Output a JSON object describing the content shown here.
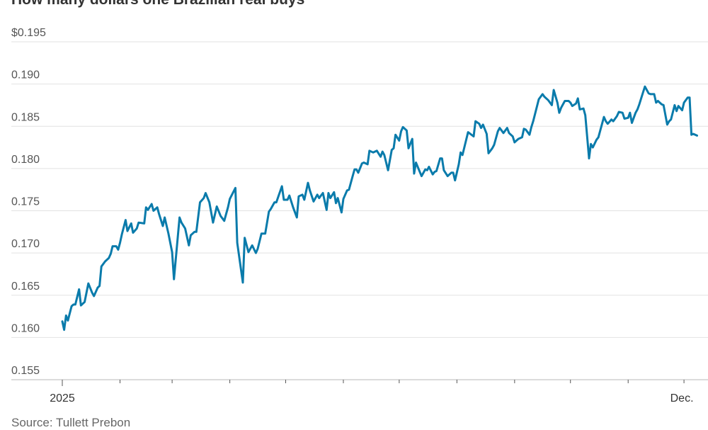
{
  "chart_data": {
    "type": "line",
    "title": "How many dollars one Brazilian real buys",
    "source": "Source: Tullett Prebon",
    "xlabel": "",
    "ylabel": "",
    "ylim": [
      0.155,
      0.195
    ],
    "yticks": [
      0.155,
      0.16,
      0.165,
      0.17,
      0.175,
      0.18,
      0.185,
      0.19,
      0.195
    ],
    "ytick_labels": [
      "0.155",
      "0.160",
      "0.165",
      "0.170",
      "0.175",
      "0.180",
      "0.185",
      "0.190",
      "$0.195"
    ],
    "xlim": [
      "2025-01-01",
      "2025-12-08"
    ],
    "xticks": [
      "2025-01-01",
      "2025-02-01",
      "2025-03-01",
      "2025-04-01",
      "2025-05-01",
      "2025-06-01",
      "2025-07-01",
      "2025-08-01",
      "2025-09-01",
      "2025-10-01",
      "2025-11-01",
      "2025-12-01"
    ],
    "xtick_labels": [
      "2025",
      "",
      "",
      "",
      "",
      "",
      "",
      "",
      "",
      "",
      "",
      "Dec."
    ],
    "grid": "horizontal",
    "line_color": "#0a7bab",
    "series": [
      {
        "points": [
          [
            "2025-01-01",
            0.1619
          ],
          [
            "2025-01-02",
            0.1609
          ],
          [
            "2025-01-03",
            0.1626
          ],
          [
            "2025-01-04",
            0.162
          ],
          [
            "2025-01-06",
            0.1637
          ],
          [
            "2025-01-07",
            0.1639
          ],
          [
            "2025-01-08",
            0.1639
          ],
          [
            "2025-01-10",
            0.1657
          ],
          [
            "2025-01-11",
            0.1638
          ],
          [
            "2025-01-13",
            0.1642
          ],
          [
            "2025-01-15",
            0.1664
          ],
          [
            "2025-01-17",
            0.1653
          ],
          [
            "2025-01-18",
            0.1649
          ],
          [
            "2025-01-20",
            0.1659
          ],
          [
            "2025-01-21",
            0.1661
          ],
          [
            "2025-01-22",
            0.1684
          ],
          [
            "2025-01-24",
            0.169
          ],
          [
            "2025-01-26",
            0.1694
          ],
          [
            "2025-01-27",
            0.1699
          ],
          [
            "2025-01-28",
            0.1708
          ],
          [
            "2025-01-30",
            0.1708
          ],
          [
            "2025-01-31",
            0.1704
          ],
          [
            "2025-02-01",
            0.1712
          ],
          [
            "2025-02-02",
            0.1722
          ],
          [
            "2025-02-04",
            0.1739
          ],
          [
            "2025-02-05",
            0.1726
          ],
          [
            "2025-02-07",
            0.1735
          ],
          [
            "2025-02-08",
            0.1724
          ],
          [
            "2025-02-10",
            0.1729
          ],
          [
            "2025-02-11",
            0.1736
          ],
          [
            "2025-02-14",
            0.1735
          ],
          [
            "2025-02-15",
            0.1754
          ],
          [
            "2025-02-16",
            0.1751
          ],
          [
            "2025-02-18",
            0.1758
          ],
          [
            "2025-02-19",
            0.175
          ],
          [
            "2025-02-21",
            0.1754
          ],
          [
            "2025-02-22",
            0.1746
          ],
          [
            "2025-02-24",
            0.1732
          ],
          [
            "2025-02-25",
            0.1742
          ],
          [
            "2025-02-27",
            0.1723
          ],
          [
            "2025-03-01",
            0.1701
          ],
          [
            "2025-03-02",
            0.1669
          ],
          [
            "2025-03-05",
            0.1742
          ],
          [
            "2025-03-06",
            0.1736
          ],
          [
            "2025-03-08",
            0.1729
          ],
          [
            "2025-03-10",
            0.1709
          ],
          [
            "2025-03-11",
            0.1721
          ],
          [
            "2025-03-13",
            0.1725
          ],
          [
            "2025-03-14",
            0.1725
          ],
          [
            "2025-03-16",
            0.176
          ],
          [
            "2025-03-18",
            0.1765
          ],
          [
            "2025-03-19",
            0.1771
          ],
          [
            "2025-03-21",
            0.176
          ],
          [
            "2025-03-23",
            0.1736
          ],
          [
            "2025-03-25",
            0.1755
          ],
          [
            "2025-03-27",
            0.1744
          ],
          [
            "2025-03-29",
            0.1738
          ],
          [
            "2025-03-31",
            0.1754
          ],
          [
            "2025-04-01",
            0.1764
          ],
          [
            "2025-04-04",
            0.1777
          ],
          [
            "2025-04-05",
            0.1712
          ],
          [
            "2025-04-08",
            0.1665
          ],
          [
            "2025-04-09",
            0.1718
          ],
          [
            "2025-04-11",
            0.1701
          ],
          [
            "2025-04-13",
            0.1709
          ],
          [
            "2025-04-15",
            0.17
          ],
          [
            "2025-04-16",
            0.1705
          ],
          [
            "2025-04-18",
            0.1723
          ],
          [
            "2025-04-20",
            0.1723
          ],
          [
            "2025-04-22",
            0.1749
          ],
          [
            "2025-04-23",
            0.1752
          ],
          [
            "2025-04-25",
            0.176
          ],
          [
            "2025-04-26",
            0.176
          ],
          [
            "2025-04-29",
            0.1779
          ],
          [
            "2025-04-30",
            0.1763
          ],
          [
            "2025-05-02",
            0.1763
          ],
          [
            "2025-05-03",
            0.1768
          ],
          [
            "2025-05-05",
            0.1754
          ],
          [
            "2025-05-07",
            0.1742
          ],
          [
            "2025-05-08",
            0.1767
          ],
          [
            "2025-05-10",
            0.1769
          ],
          [
            "2025-05-11",
            0.1763
          ],
          [
            "2025-05-13",
            0.1783
          ],
          [
            "2025-05-14",
            0.1774
          ],
          [
            "2025-05-16",
            0.1761
          ],
          [
            "2025-05-18",
            0.1769
          ],
          [
            "2025-05-19",
            0.1765
          ],
          [
            "2025-05-20",
            0.1768
          ],
          [
            "2025-05-21",
            0.1771
          ],
          [
            "2025-05-23",
            0.1751
          ],
          [
            "2025-05-24",
            0.1771
          ],
          [
            "2025-05-25",
            0.1765
          ],
          [
            "2025-05-27",
            0.1772
          ],
          [
            "2025-05-28",
            0.1759
          ],
          [
            "2025-05-29",
            0.1765
          ],
          [
            "2025-05-31",
            0.1748
          ],
          [
            "2025-06-01",
            0.1764
          ],
          [
            "2025-06-03",
            0.1774
          ],
          [
            "2025-06-04",
            0.1775
          ],
          [
            "2025-06-06",
            0.1791
          ],
          [
            "2025-06-07",
            0.1799
          ],
          [
            "2025-06-08",
            0.1799
          ],
          [
            "2025-06-09",
            0.1795
          ],
          [
            "2025-06-11",
            0.1806
          ],
          [
            "2025-06-12",
            0.1807
          ],
          [
            "2025-06-14",
            0.1805
          ],
          [
            "2025-06-15",
            0.1821
          ],
          [
            "2025-06-17",
            0.1819
          ],
          [
            "2025-06-19",
            0.1821
          ],
          [
            "2025-06-21",
            0.1814
          ],
          [
            "2025-06-22",
            0.182
          ],
          [
            "2025-06-23",
            0.1816
          ],
          [
            "2025-06-25",
            0.1798
          ],
          [
            "2025-06-27",
            0.1822
          ],
          [
            "2025-06-28",
            0.1824
          ],
          [
            "2025-06-29",
            0.184
          ],
          [
            "2025-07-01",
            0.1833
          ],
          [
            "2025-07-02",
            0.1844
          ],
          [
            "2025-07-03",
            0.1849
          ],
          [
            "2025-07-05",
            0.1845
          ],
          [
            "2025-07-06",
            0.1824
          ],
          [
            "2025-07-08",
            0.1835
          ],
          [
            "2025-07-09",
            0.1794
          ],
          [
            "2025-07-10",
            0.1807
          ],
          [
            "2025-07-13",
            0.1791
          ],
          [
            "2025-07-15",
            0.1799
          ],
          [
            "2025-07-16",
            0.1798
          ],
          [
            "2025-07-17",
            0.1802
          ],
          [
            "2025-07-19",
            0.1793
          ],
          [
            "2025-07-20",
            0.1796
          ],
          [
            "2025-07-21",
            0.1797
          ],
          [
            "2025-07-23",
            0.1812
          ],
          [
            "2025-07-24",
            0.1812
          ],
          [
            "2025-07-25",
            0.1798
          ],
          [
            "2025-07-27",
            0.1791
          ],
          [
            "2025-07-29",
            0.1795
          ],
          [
            "2025-07-30",
            0.1795
          ],
          [
            "2025-07-31",
            0.1786
          ],
          [
            "2025-08-02",
            0.1805
          ],
          [
            "2025-08-03",
            0.1819
          ],
          [
            "2025-08-04",
            0.1816
          ],
          [
            "2025-08-07",
            0.1843
          ],
          [
            "2025-08-10",
            0.1838
          ],
          [
            "2025-08-11",
            0.1856
          ],
          [
            "2025-08-13",
            0.1853
          ],
          [
            "2025-08-14",
            0.1848
          ],
          [
            "2025-08-15",
            0.1852
          ],
          [
            "2025-08-17",
            0.1841
          ],
          [
            "2025-08-18",
            0.1818
          ],
          [
            "2025-08-20",
            0.1824
          ],
          [
            "2025-08-21",
            0.1828
          ],
          [
            "2025-08-23",
            0.1844
          ],
          [
            "2025-08-24",
            0.1848
          ],
          [
            "2025-08-26",
            0.1842
          ],
          [
            "2025-08-28",
            0.1848
          ],
          [
            "2025-08-29",
            0.1842
          ],
          [
            "2025-08-31",
            0.1838
          ],
          [
            "2025-09-01",
            0.1831
          ],
          [
            "2025-09-03",
            0.1835
          ],
          [
            "2025-09-05",
            0.1837
          ],
          [
            "2025-09-06",
            0.1847
          ],
          [
            "2025-09-07",
            0.1846
          ],
          [
            "2025-09-09",
            0.184
          ],
          [
            "2025-09-10",
            0.1849
          ],
          [
            "2025-09-11",
            0.1856
          ],
          [
            "2025-09-14",
            0.1882
          ],
          [
            "2025-09-16",
            0.1888
          ],
          [
            "2025-09-17",
            0.1885
          ],
          [
            "2025-09-19",
            0.1881
          ],
          [
            "2025-09-21",
            0.1875
          ],
          [
            "2025-09-22",
            0.1893
          ],
          [
            "2025-09-24",
            0.1878
          ],
          [
            "2025-09-25",
            0.1866
          ],
          [
            "2025-09-26",
            0.1872
          ],
          [
            "2025-09-28",
            0.188
          ],
          [
            "2025-09-30",
            0.188
          ],
          [
            "2025-10-01",
            0.1878
          ],
          [
            "2025-10-02",
            0.1874
          ],
          [
            "2025-10-04",
            0.1877
          ],
          [
            "2025-10-05",
            0.1883
          ],
          [
            "2025-10-06",
            0.187
          ],
          [
            "2025-10-08",
            0.1871
          ],
          [
            "2025-10-09",
            0.1863
          ],
          [
            "2025-10-11",
            0.1812
          ],
          [
            "2025-10-12",
            0.1829
          ],
          [
            "2025-10-13",
            0.1825
          ],
          [
            "2025-10-15",
            0.1834
          ],
          [
            "2025-10-16",
            0.1837
          ],
          [
            "2025-10-19",
            0.1861
          ],
          [
            "2025-10-20",
            0.1856
          ],
          [
            "2025-10-21",
            0.1853
          ],
          [
            "2025-10-23",
            0.1858
          ],
          [
            "2025-10-24",
            0.1856
          ],
          [
            "2025-10-26",
            0.1862
          ],
          [
            "2025-10-27",
            0.1867
          ],
          [
            "2025-10-29",
            0.1866
          ],
          [
            "2025-10-30",
            0.1859
          ],
          [
            "2025-11-01",
            0.186
          ],
          [
            "2025-11-02",
            0.1866
          ],
          [
            "2025-11-03",
            0.1854
          ],
          [
            "2025-11-05",
            0.1866
          ],
          [
            "2025-11-06",
            0.187
          ],
          [
            "2025-11-07",
            0.1876
          ],
          [
            "2025-11-09",
            0.189
          ],
          [
            "2025-11-10",
            0.1897
          ],
          [
            "2025-11-12",
            0.1889
          ],
          [
            "2025-11-13",
            0.1888
          ],
          [
            "2025-11-15",
            0.1888
          ],
          [
            "2025-11-16",
            0.1878
          ],
          [
            "2025-11-17",
            0.188
          ],
          [
            "2025-11-19",
            0.1876
          ],
          [
            "2025-11-20",
            0.1875
          ],
          [
            "2025-11-22",
            0.1852
          ],
          [
            "2025-11-23",
            0.1856
          ],
          [
            "2025-11-24",
            0.1858
          ],
          [
            "2025-11-26",
            0.1875
          ],
          [
            "2025-11-27",
            0.1868
          ],
          [
            "2025-11-28",
            0.1874
          ],
          [
            "2025-11-30",
            0.1869
          ],
          [
            "2025-12-01",
            0.1878
          ],
          [
            "2025-12-03",
            0.1884
          ],
          [
            "2025-12-04",
            0.1884
          ],
          [
            "2025-12-05",
            0.184
          ],
          [
            "2025-12-06",
            0.1841
          ],
          [
            "2025-12-08",
            0.1839
          ]
        ]
      }
    ]
  }
}
